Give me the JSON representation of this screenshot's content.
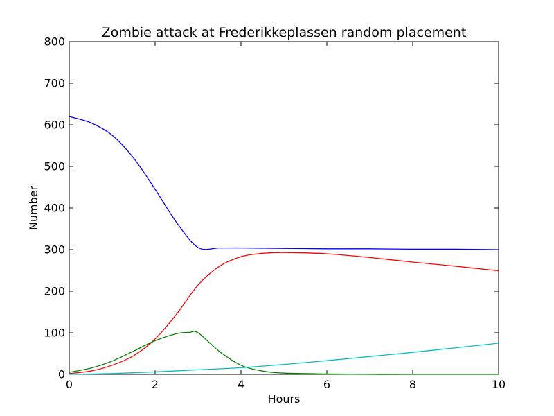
{
  "chart_data": {
    "type": "line",
    "title": "Zombie attack at Frederikkeplassen random placement",
    "xlabel": "Hours",
    "ylabel": "Number",
    "xlim": [
      0,
      10
    ],
    "ylim": [
      0,
      800
    ],
    "xticks": [
      "0",
      "2",
      "4",
      "6",
      "8",
      "10"
    ],
    "yticks": [
      "0",
      "100",
      "200",
      "300",
      "400",
      "500",
      "600",
      "700",
      "800"
    ],
    "grid": false,
    "series": [
      {
        "color": "#0000ff",
        "x": [
          0,
          0.5,
          1,
          1.5,
          2,
          2.5,
          3,
          3.5,
          4,
          5,
          6,
          7,
          8,
          9,
          10
        ],
        "y": [
          620,
          605,
          575,
          520,
          445,
          365,
          305,
          304,
          304,
          303,
          302,
          302,
          301,
          301,
          300
        ]
      },
      {
        "color": "#ff0000",
        "x": [
          0,
          0.5,
          1,
          1.5,
          2,
          2.5,
          3,
          3.5,
          4,
          4.5,
          5,
          6,
          7,
          8,
          9,
          10
        ],
        "y": [
          2,
          8,
          22,
          45,
          85,
          145,
          215,
          260,
          283,
          291,
          293,
          290,
          281,
          270,
          260,
          249
        ]
      },
      {
        "color": "#008000",
        "x": [
          0,
          0.5,
          1,
          1.5,
          2,
          2.5,
          2.8,
          3,
          3.5,
          4,
          4.5,
          5,
          6,
          7,
          8,
          10
        ],
        "y": [
          5,
          15,
          32,
          56,
          81,
          98,
          101,
          100,
          55,
          22,
          8,
          3,
          1,
          0,
          0,
          0
        ]
      },
      {
        "color": "#00bfbf",
        "x": [
          0,
          1,
          2,
          3,
          4,
          5,
          6,
          7,
          8,
          9,
          10
        ],
        "y": [
          0,
          2,
          6,
          11,
          16,
          24,
          33,
          43,
          53,
          64,
          75
        ]
      }
    ]
  }
}
